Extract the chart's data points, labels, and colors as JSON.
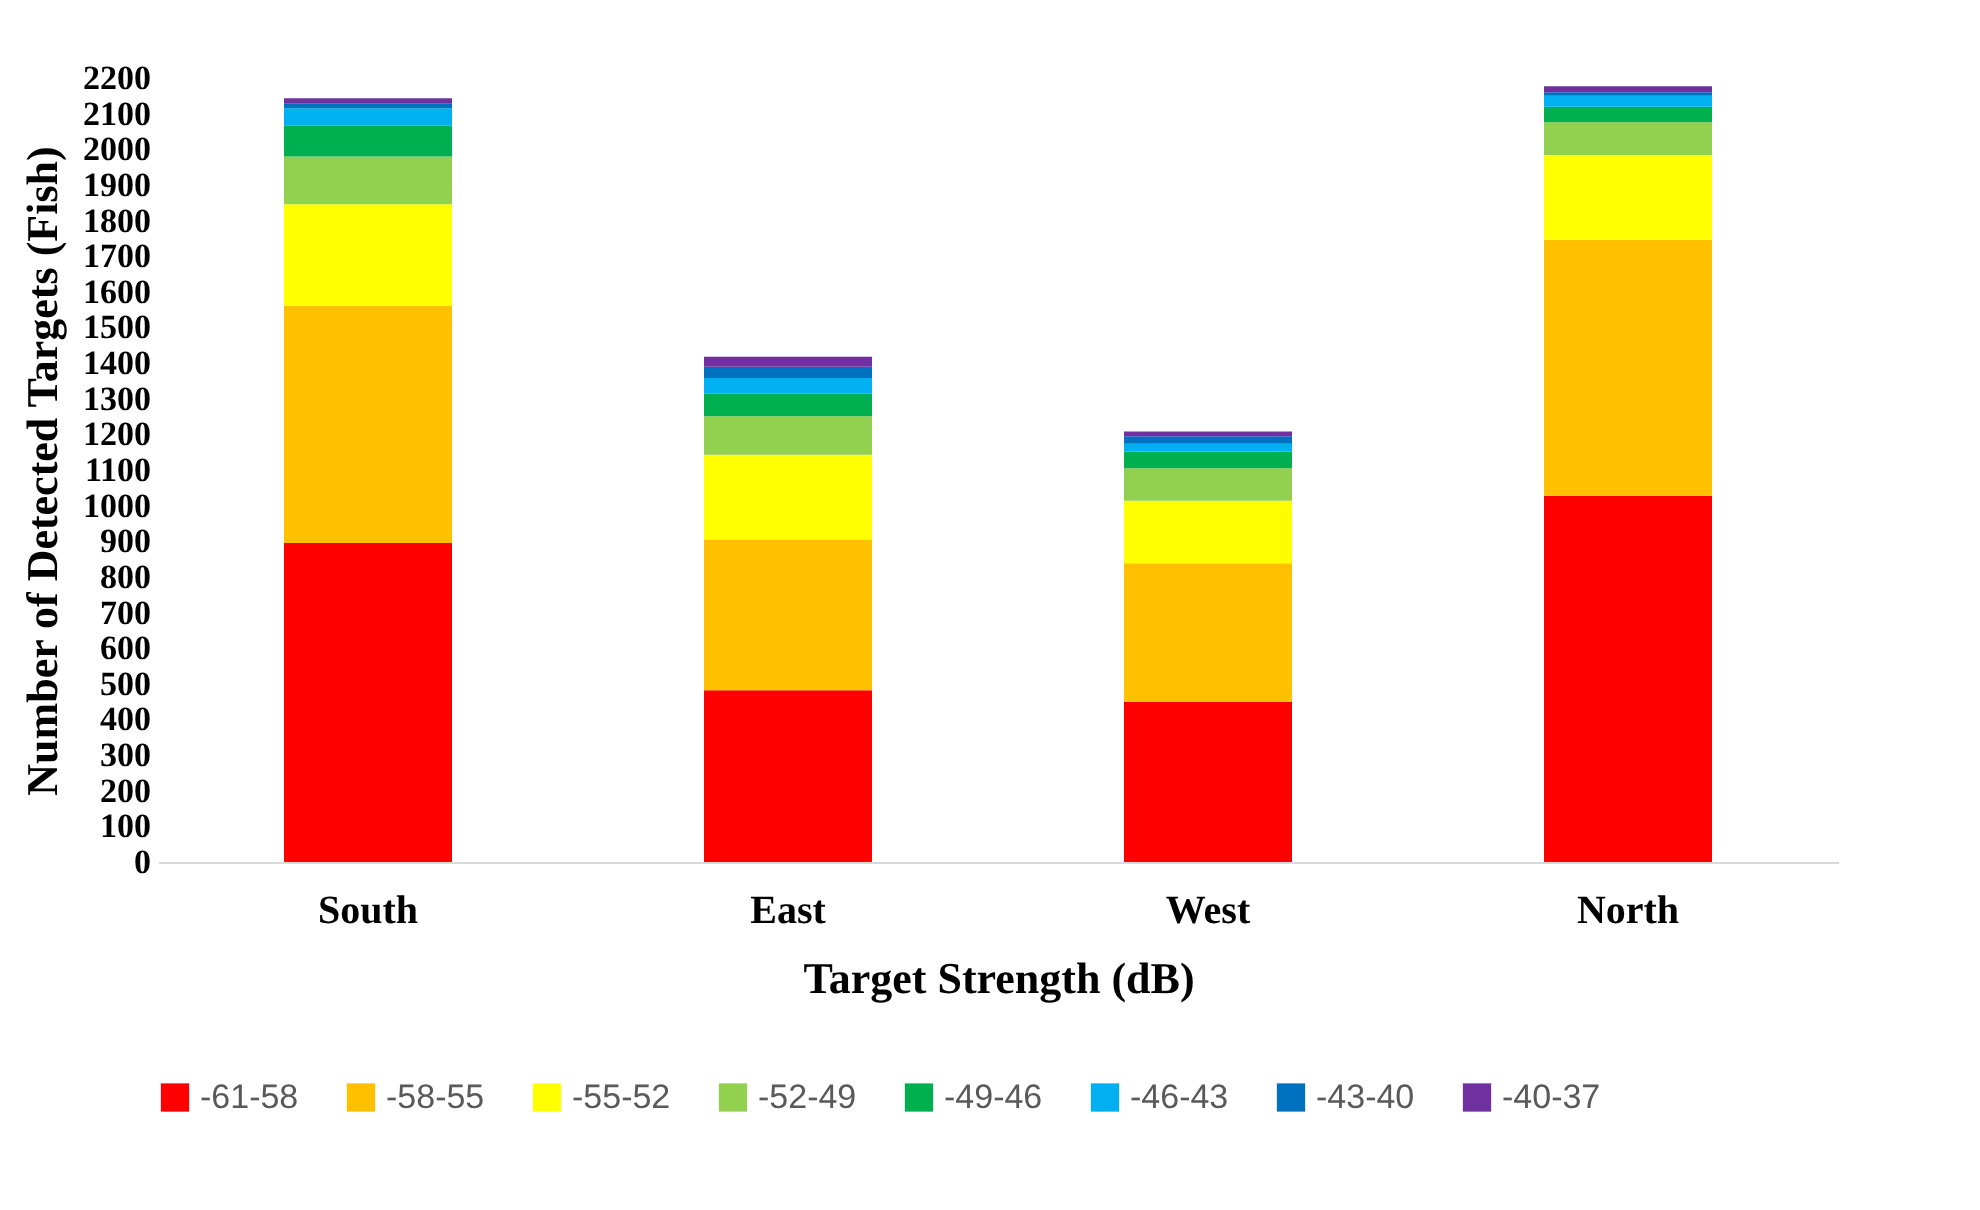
{
  "chart_data": {
    "type": "bar",
    "stacked": true,
    "xlabel": "Target Strength (dB)",
    "ylabel": "Number of Detected Targets (Fish)",
    "categories": [
      "South",
      "East",
      "West",
      "North"
    ],
    "series": [
      {
        "name": "-61-58",
        "color": "#ff0000",
        "values": [
          895,
          482,
          449,
          1028
        ]
      },
      {
        "name": "-58-55",
        "color": "#ffc000",
        "values": [
          666,
          423,
          389,
          718
        ]
      },
      {
        "name": "-55-52",
        "color": "#ffff00",
        "values": [
          285,
          238,
          176,
          238
        ]
      },
      {
        "name": "-52-49",
        "color": "#92d050",
        "values": [
          134,
          108,
          91,
          92
        ]
      },
      {
        "name": "-49-46",
        "color": "#00b050",
        "values": [
          86,
          63,
          47,
          43
        ]
      },
      {
        "name": "-46-43",
        "color": "#00b0f0",
        "values": [
          49,
          44,
          22,
          31
        ]
      },
      {
        "name": "-43-40",
        "color": "#0070c0",
        "values": [
          13,
          32,
          21,
          10
        ]
      },
      {
        "name": "-40-37",
        "color": "#7030a0",
        "values": [
          15,
          28,
          13,
          17
        ]
      }
    ],
    "ylim": [
      0,
      2200
    ],
    "yticks": [
      0,
      100,
      200,
      300,
      400,
      500,
      600,
      700,
      800,
      900,
      1000,
      1100,
      1200,
      1300,
      1400,
      1500,
      1600,
      1700,
      1800,
      1900,
      2000,
      2100,
      2200
    ],
    "grid": false,
    "legend": "bottom"
  }
}
